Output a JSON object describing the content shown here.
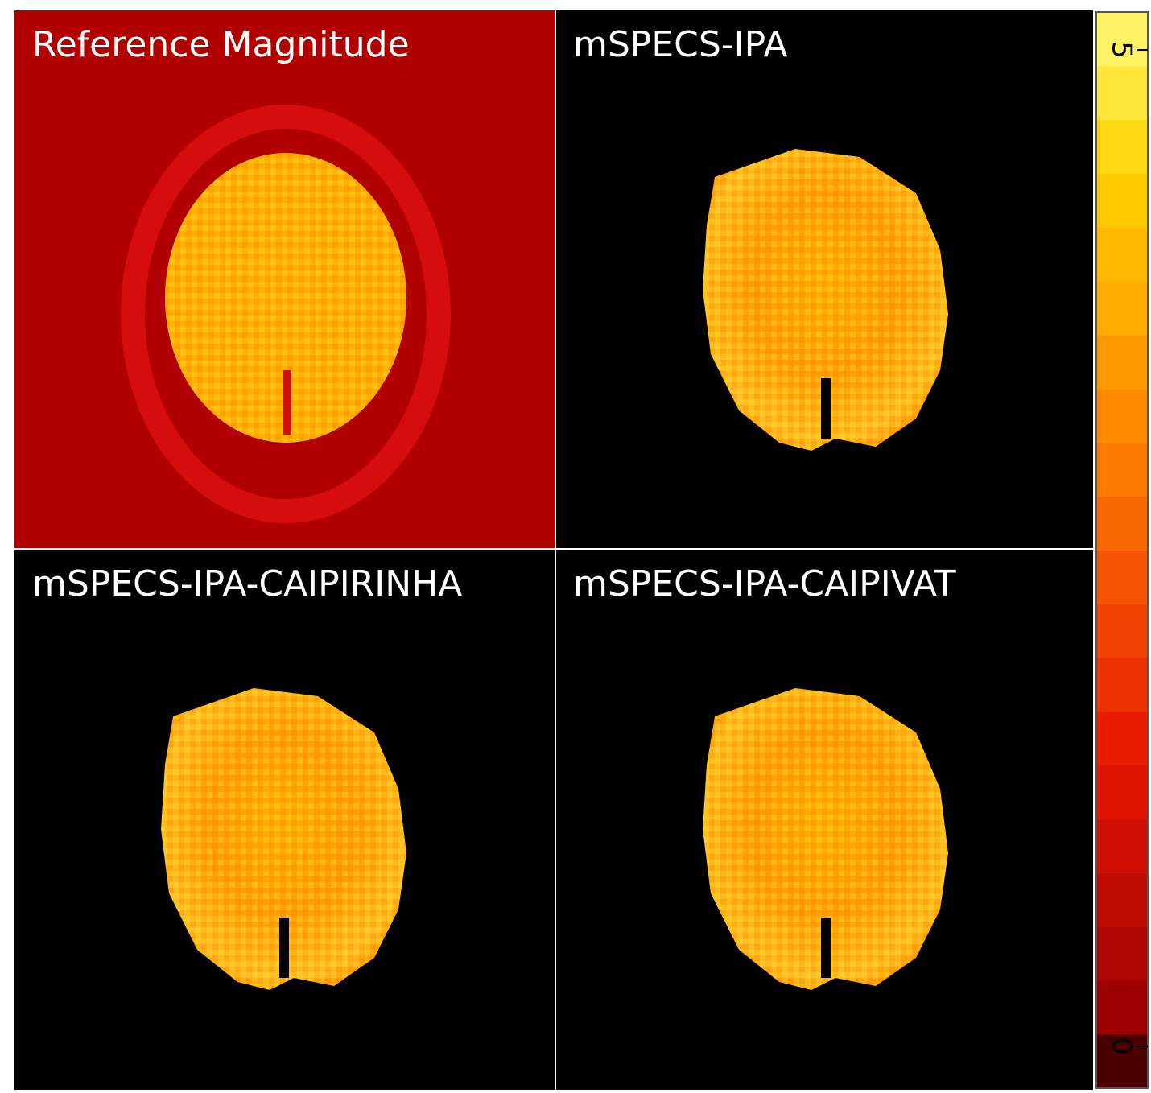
{
  "panels": [
    {
      "title": "Reference Magnitude"
    },
    {
      "title": "mSPECS-IPA"
    },
    {
      "title": "mSPECS-IPA-CAIPIRINHA"
    },
    {
      "title": "mSPECS-IPA-CAIPIVAT"
    }
  ],
  "colorbar": {
    "lim": [
      -0.21,
      5.19
    ],
    "ticks": [
      0,
      5
    ]
  }
}
